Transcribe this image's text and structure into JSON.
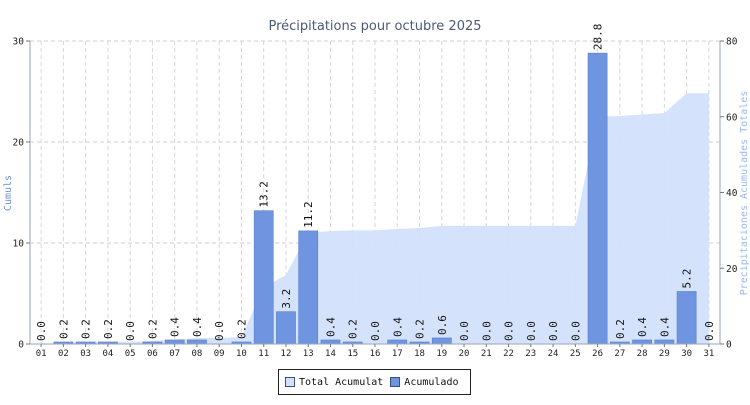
{
  "chart_data": {
    "type": "bar",
    "title": "Précipitations pour octubre 2025",
    "ylabel": "Cumuls",
    "y2label": "Precipitaciones Acumulades Totales",
    "ylim": [
      0,
      30
    ],
    "y2lim": [
      0,
      80
    ],
    "yticks": [
      "0",
      "10",
      "20",
      "30"
    ],
    "y2ticks": [
      "0",
      "20",
      "40",
      "60",
      "80"
    ],
    "categories": [
      "01",
      "02",
      "03",
      "04",
      "05",
      "06",
      "07",
      "08",
      "09",
      "10",
      "11",
      "12",
      "13",
      "14",
      "15",
      "16",
      "17",
      "18",
      "19",
      "20",
      "21",
      "22",
      "23",
      "24",
      "25",
      "26",
      "27",
      "28",
      "29",
      "30",
      "31"
    ],
    "value_labels": [
      "0.0",
      "0.2",
      "0.2",
      "0.2",
      "0.0",
      "0.2",
      "0.4",
      "0.4",
      "0.0",
      "0.2",
      "13.2",
      "3.2",
      "11.2",
      "0.4",
      "0.2",
      "0.0",
      "0.4",
      "0.2",
      "0.6",
      "0.0",
      "0.0",
      "0.0",
      "0.0",
      "0.0",
      "0.0",
      "28.8",
      "0.2",
      "0.4",
      "0.4",
      "5.2",
      "0.0"
    ],
    "grid": true,
    "legend_position": "bottom-center",
    "series": [
      {
        "name": "Total Acumulat",
        "type": "area",
        "axis": "right",
        "color": "#d3e0fb",
        "values": [
          0,
          0.2,
          0.4,
          0.6,
          0.6,
          0.8,
          1.2,
          1.6,
          1.6,
          1.8,
          15.0,
          18.2,
          29.4,
          29.8,
          30.0,
          30.0,
          30.4,
          30.6,
          31.2,
          31.2,
          31.2,
          31.2,
          31.2,
          31.2,
          31.2,
          60.0,
          60.2,
          60.6,
          61.0,
          66.2,
          66.2
        ]
      },
      {
        "name": "Acumulado",
        "type": "bar",
        "axis": "left",
        "color": "#6f95e0",
        "values": [
          0.0,
          0.2,
          0.2,
          0.2,
          0.0,
          0.2,
          0.4,
          0.4,
          0.0,
          0.2,
          13.2,
          3.2,
          11.2,
          0.4,
          0.2,
          0.0,
          0.4,
          0.2,
          0.6,
          0.0,
          0.0,
          0.0,
          0.0,
          0.0,
          0.0,
          28.8,
          0.2,
          0.4,
          0.4,
          5.2,
          0.0
        ]
      }
    ]
  },
  "legend": {
    "items": [
      {
        "label": "Total Acumulat",
        "color": "#d3e0fb"
      },
      {
        "label": "Acumulado",
        "color": "#6f95e0"
      }
    ]
  }
}
